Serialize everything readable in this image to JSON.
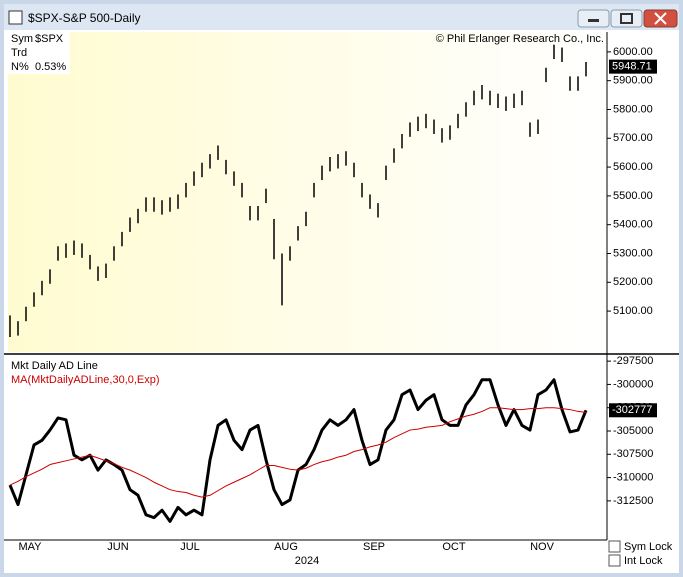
{
  "window": {
    "title": "$SPX-S&P 500-Daily"
  },
  "info": {
    "rows": [
      [
        "Sym",
        "$SPX"
      ],
      [
        "Trd"
      ],
      [
        "N%",
        "0.53%"
      ]
    ]
  },
  "chart_data": [
    {
      "type": "ohlc",
      "annotation": "© Phil Erlanger Research Co., Inc.",
      "color": "#000000",
      "high": [
        5085,
        5065,
        5115,
        5165,
        5205,
        5245,
        5325,
        5335,
        5345,
        5335,
        5295,
        5255,
        5265,
        5325,
        5375,
        5425,
        5455,
        5495,
        5495,
        5485,
        5495,
        5505,
        5545,
        5585,
        5615,
        5645,
        5675,
        5625,
        5585,
        5545,
        5465,
        5465,
        5525,
        5420,
        5300,
        5325,
        5395,
        5445,
        5545,
        5605,
        5635,
        5645,
        5655,
        5615,
        5545,
        5505,
        5475,
        5605,
        5665,
        5715,
        5755,
        5775,
        5785,
        5765,
        5735,
        5745,
        5785,
        5825,
        5865,
        5885,
        5865,
        5855,
        5845,
        5855,
        5865,
        5755,
        5765,
        5945,
        6025,
        6015,
        5915,
        5915,
        5965
      ],
      "low": [
        5010,
        5015,
        5065,
        5115,
        5155,
        5195,
        5275,
        5285,
        5295,
        5285,
        5245,
        5205,
        5215,
        5275,
        5325,
        5375,
        5405,
        5445,
        5445,
        5435,
        5445,
        5455,
        5495,
        5535,
        5565,
        5595,
        5625,
        5575,
        5535,
        5495,
        5415,
        5415,
        5475,
        5280,
        5120,
        5275,
        5345,
        5395,
        5495,
        5555,
        5585,
        5595,
        5605,
        5565,
        5495,
        5455,
        5425,
        5555,
        5615,
        5665,
        5705,
        5725,
        5735,
        5715,
        5685,
        5695,
        5735,
        5775,
        5815,
        5835,
        5815,
        5805,
        5795,
        5805,
        5815,
        5705,
        5715,
        5895,
        5975,
        5965,
        5865,
        5865,
        5915
      ],
      "last_value": 5948.71,
      "ylim": [
        4958,
        6069
      ],
      "yticks": [
        {
          "value": 5100,
          "label": "5100.00"
        },
        {
          "value": 5200,
          "label": "5200.00"
        },
        {
          "value": 5300,
          "label": "5300.00"
        },
        {
          "value": 5400,
          "label": "5400.00"
        },
        {
          "value": 5500,
          "label": "5500.00"
        },
        {
          "value": 5600,
          "label": "5600.00"
        },
        {
          "value": 5700,
          "label": "5700.00"
        },
        {
          "value": 5800,
          "label": "5800.00"
        },
        {
          "value": 5900,
          "label": "5900.00"
        },
        {
          "value": 6000,
          "label": "6000.00"
        }
      ]
    },
    {
      "type": "line",
      "xlabel": "2024",
      "categories": [
        null,
        null,
        "MAY",
        null,
        null,
        null,
        null,
        null,
        null,
        null,
        null,
        null,
        null,
        "JUN",
        null,
        null,
        null,
        null,
        null,
        null,
        null,
        null,
        "JUL",
        null,
        null,
        null,
        null,
        null,
        null,
        null,
        null,
        null,
        null,
        null,
        "AUG",
        null,
        null,
        null,
        null,
        null,
        null,
        null,
        null,
        null,
        null,
        "SEP",
        null,
        null,
        null,
        null,
        null,
        null,
        null,
        null,
        null,
        "OCT",
        null,
        null,
        null,
        null,
        null,
        null,
        null,
        null,
        null,
        null,
        "NOV",
        null,
        null,
        null,
        null,
        null,
        null
      ],
      "series": [
        {
          "name": "Mkt Daily AD Line",
          "color": "#000000",
          "values": [
            -310800,
            -312900,
            -309700,
            -306500,
            -306000,
            -304900,
            -303600,
            -303800,
            -307600,
            -308100,
            -307600,
            -309200,
            -308100,
            -308600,
            -309200,
            -311300,
            -311900,
            -314000,
            -314300,
            -313500,
            -314700,
            -313200,
            -314000,
            -313500,
            -314000,
            -308100,
            -304400,
            -303800,
            -306000,
            -307000,
            -304900,
            -304400,
            -308100,
            -311300,
            -312900,
            -312400,
            -309200,
            -308600,
            -307000,
            -304900,
            -303800,
            -304400,
            -303800,
            -302700,
            -306000,
            -308600,
            -308100,
            -304900,
            -303800,
            -301100,
            -300600,
            -302700,
            -301700,
            -301100,
            -303800,
            -304400,
            -304400,
            -302200,
            -301100,
            -299500,
            -299500,
            -302200,
            -304400,
            -302700,
            -304400,
            -304900,
            -301100,
            -300600,
            -299500,
            -302700,
            -305100,
            -304900,
            -302777
          ]
        },
        {
          "name": "MA(MktDailyADLine,30,0,Exp)",
          "color": "#cc0000",
          "values": [
            -310800,
            -310400,
            -309900,
            -309500,
            -309100,
            -308600,
            -308400,
            -308200,
            -308000,
            -307800,
            -307600,
            -307900,
            -308200,
            -308500,
            -308900,
            -309200,
            -309600,
            -310000,
            -310500,
            -310900,
            -311300,
            -311500,
            -311600,
            -311900,
            -312100,
            -311900,
            -311400,
            -310900,
            -310500,
            -310100,
            -309700,
            -309200,
            -308700,
            -308700,
            -308900,
            -309100,
            -309200,
            -309000,
            -308600,
            -308300,
            -308100,
            -307800,
            -307600,
            -307200,
            -307000,
            -306700,
            -306500,
            -306200,
            -305700,
            -305300,
            -304900,
            -304800,
            -304600,
            -304500,
            -304400,
            -304000,
            -303700,
            -303400,
            -303200,
            -302900,
            -302500,
            -302500,
            -302600,
            -302700,
            -302700,
            -302600,
            -302600,
            -302500,
            -302500,
            -302600,
            -302700,
            -302900,
            -303000
          ]
        }
      ],
      "last_value": -302777,
      "ylim": [
        -316700,
        -296950
      ],
      "yticks": [
        -297500,
        -300000,
        -302500,
        -305000,
        -307500,
        -310000,
        -312500
      ]
    }
  ],
  "controls": {
    "checkboxes": [
      "Sym Lock",
      "Int Lock"
    ]
  }
}
